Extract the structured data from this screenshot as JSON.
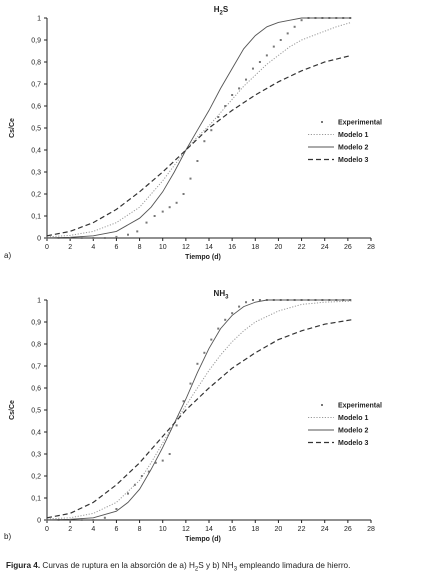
{
  "chart_data": [
    {
      "type": "scatter",
      "panel_tag": "a)",
      "title_main": "H",
      "title_sub": "2",
      "title_tail": "S",
      "xlabel": "Tiempo (d)",
      "ylabel": "Cs/Ce",
      "xlim": [
        0,
        28
      ],
      "ylim": [
        0,
        1
      ],
      "xticks": [
        "0",
        "2",
        "4",
        "6",
        "8",
        "10",
        "12",
        "14",
        "16",
        "18",
        "20",
        "22",
        "24",
        "26",
        "28"
      ],
      "yticks": [
        "0",
        "0,1",
        "0,2",
        "0,3",
        "0,4",
        "0,5",
        "0,6",
        "0,7",
        "0,8",
        "0,9",
        "1"
      ],
      "legend_position": "right",
      "series": [
        {
          "name": "Experimental",
          "style": "markers",
          "x": [
            0,
            1,
            2,
            3,
            4,
            5,
            6,
            7,
            7.8,
            8.6,
            9.3,
            10,
            10.6,
            11.2,
            11.8,
            12.4,
            13,
            13.6,
            14.2,
            14.8,
            15.4,
            16,
            16.6,
            17.2,
            17.8,
            18.4,
            19,
            19.6,
            20.2,
            20.8,
            21.4,
            22,
            22.6,
            23.2,
            23.8,
            24.4,
            25,
            25.6,
            26.2
          ],
          "y": [
            0,
            0,
            0,
            0,
            0,
            0,
            0.005,
            0.015,
            0.03,
            0.07,
            0.1,
            0.12,
            0.14,
            0.16,
            0.2,
            0.27,
            0.35,
            0.44,
            0.49,
            0.55,
            0.6,
            0.65,
            0.68,
            0.72,
            0.77,
            0.8,
            0.83,
            0.87,
            0.9,
            0.93,
            0.96,
            0.99,
            1,
            1,
            1,
            1,
            1,
            1,
            1
          ]
        },
        {
          "name": "Modelo 1",
          "style": "dotted",
          "x": [
            0,
            2,
            4,
            6,
            8,
            10,
            11,
            12,
            13,
            14,
            15,
            16,
            17,
            18,
            19,
            20,
            21,
            22,
            23,
            24,
            25,
            26.3
          ],
          "y": [
            0.005,
            0.012,
            0.03,
            0.07,
            0.14,
            0.26,
            0.33,
            0.4,
            0.46,
            0.51,
            0.57,
            0.63,
            0.69,
            0.74,
            0.79,
            0.83,
            0.87,
            0.9,
            0.92,
            0.94,
            0.96,
            0.98
          ]
        },
        {
          "name": "Modelo 2",
          "style": "solid",
          "x": [
            0,
            2,
            4,
            6,
            8,
            9,
            10,
            11,
            12,
            13,
            14,
            15,
            16,
            17,
            18,
            19,
            20,
            21,
            22,
            23,
            24,
            26.3
          ],
          "y": [
            0.001,
            0.003,
            0.01,
            0.03,
            0.09,
            0.14,
            0.21,
            0.3,
            0.4,
            0.49,
            0.58,
            0.68,
            0.77,
            0.86,
            0.92,
            0.96,
            0.98,
            0.99,
            1,
            1,
            1,
            1
          ]
        },
        {
          "name": "Modelo 3",
          "style": "dashed",
          "x": [
            0,
            2,
            4,
            6,
            8,
            10,
            12,
            14,
            16,
            18,
            20,
            22,
            24,
            26.3
          ],
          "y": [
            0.01,
            0.03,
            0.07,
            0.13,
            0.21,
            0.3,
            0.4,
            0.5,
            0.58,
            0.65,
            0.71,
            0.76,
            0.8,
            0.83
          ]
        }
      ]
    },
    {
      "type": "scatter",
      "panel_tag": "b)",
      "title_main": "NH",
      "title_sub": "3",
      "title_tail": "",
      "xlabel": "Tiempo (d)",
      "ylabel": "Cs/Ce",
      "xlim": [
        0,
        28
      ],
      "ylim": [
        0,
        1
      ],
      "xticks": [
        "0",
        "2",
        "4",
        "6",
        "8",
        "10",
        "12",
        "14",
        "16",
        "18",
        "20",
        "22",
        "24",
        "26",
        "28"
      ],
      "yticks": [
        "0",
        "0,1",
        "0,2",
        "0,3",
        "0,4",
        "0,5",
        "0,6",
        "0,7",
        "0,8",
        "0,9",
        "1"
      ],
      "legend_position": "right",
      "series": [
        {
          "name": "Experimental",
          "style": "markers",
          "x": [
            0,
            1,
            2,
            3,
            4,
            5,
            6,
            7,
            7.6,
            8.2,
            8.8,
            9.4,
            10,
            10.6,
            11.2,
            11.8,
            12.4,
            13,
            13.6,
            14.2,
            14.8,
            15.4,
            16,
            16.6,
            17.2,
            17.8,
            18.4,
            19,
            19.6,
            20.2,
            20.8,
            21.4,
            22,
            22.6,
            23.2,
            23.8,
            24.4,
            25,
            25.6,
            26.2
          ],
          "y": [
            0,
            0,
            0,
            0,
            0,
            0.01,
            0.05,
            0.12,
            0.16,
            0.2,
            0.22,
            0.26,
            0.27,
            0.3,
            0.43,
            0.54,
            0.62,
            0.71,
            0.76,
            0.82,
            0.87,
            0.91,
            0.94,
            0.97,
            0.99,
            1,
            1,
            1,
            1,
            1,
            1,
            1,
            1,
            1,
            1,
            1,
            1,
            1,
            1,
            1
          ]
        },
        {
          "name": "Modelo 1",
          "style": "dotted",
          "x": [
            0,
            2,
            4,
            6,
            8,
            9,
            10,
            11,
            12,
            13,
            14,
            15,
            16,
            17,
            18,
            20,
            22,
            24,
            26.3
          ],
          "y": [
            0.005,
            0.01,
            0.03,
            0.08,
            0.18,
            0.26,
            0.35,
            0.44,
            0.52,
            0.6,
            0.68,
            0.75,
            0.81,
            0.86,
            0.9,
            0.95,
            0.98,
            0.99,
            0.995
          ]
        },
        {
          "name": "Modelo 2",
          "style": "solid",
          "x": [
            0,
            2,
            4,
            6,
            7,
            8,
            9,
            10,
            11,
            12,
            13,
            14,
            15,
            16,
            17,
            18,
            19,
            20,
            22,
            24,
            26.3
          ],
          "y": [
            0.001,
            0.003,
            0.01,
            0.04,
            0.08,
            0.14,
            0.23,
            0.33,
            0.44,
            0.55,
            0.67,
            0.78,
            0.87,
            0.93,
            0.97,
            0.99,
            1,
            1,
            1,
            1,
            1
          ]
        },
        {
          "name": "Modelo 3",
          "style": "dashed",
          "x": [
            0,
            2,
            4,
            6,
            8,
            10,
            12,
            14,
            16,
            18,
            20,
            22,
            24,
            26.3
          ],
          "y": [
            0.01,
            0.03,
            0.08,
            0.16,
            0.26,
            0.38,
            0.5,
            0.6,
            0.69,
            0.76,
            0.82,
            0.86,
            0.89,
            0.91
          ]
        }
      ]
    }
  ],
  "caption": {
    "bold": "Figura 4.",
    "t1": " Curvas de ruptura en la absorción de a) H",
    "s1": "2",
    "t2": "S y b) NH",
    "s2": "3",
    "t3": " empleando limadura de hierro."
  },
  "colors": {
    "axis": "#222222",
    "modelo1": "#999999",
    "modelo2": "#555555",
    "modelo3": "#333333",
    "markers": "#777777"
  }
}
